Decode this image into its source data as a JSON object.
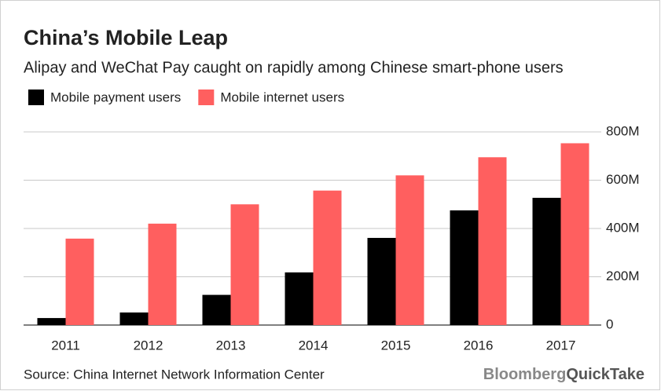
{
  "chart_data": {
    "type": "bar",
    "title": "China’s Mobile Leap",
    "subtitle": "Alipay and WeChat Pay caught on rapidly among Chinese smart-phone users",
    "categories": [
      "2011",
      "2012",
      "2013",
      "2014",
      "2015",
      "2016",
      "2017"
    ],
    "series": [
      {
        "name": "Mobile payment users",
        "color": "#000000",
        "values": [
          29,
          52,
          125,
          218,
          361,
          475,
          527
        ]
      },
      {
        "name": "Mobile internet users",
        "color": "#ff5f5f",
        "values": [
          358,
          420,
          500,
          557,
          620,
          695,
          753
        ]
      }
    ],
    "ylim": [
      0,
      800
    ],
    "yticks": [
      0,
      {
        "value": 200,
        "label": "200M"
      },
      {
        "value": 400,
        "label": "400M"
      },
      {
        "value": 600,
        "label": "600M"
      },
      {
        "value": 800,
        "label": "800M"
      }
    ],
    "grid": true,
    "legend": "top",
    "source": "Source: China Internet Network Information Center",
    "brand": [
      "Bloomberg",
      "QuickTake"
    ]
  }
}
